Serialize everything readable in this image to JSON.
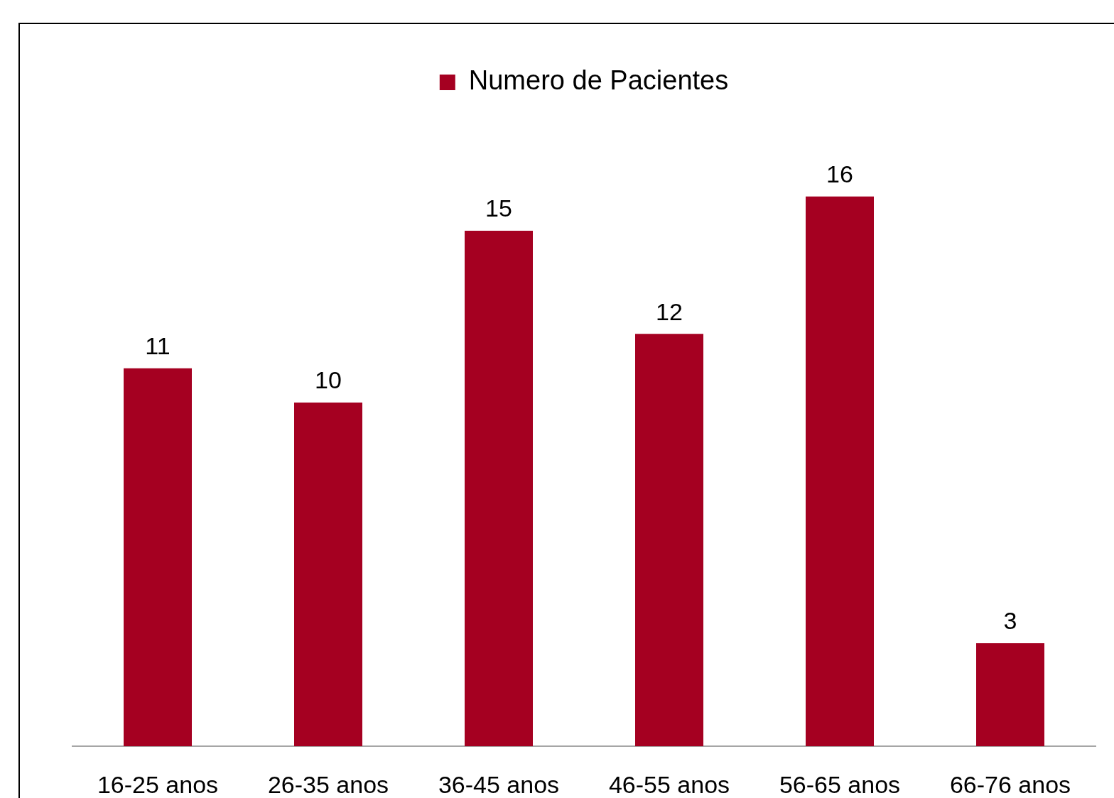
{
  "chart_data": {
    "type": "bar",
    "categories": [
      "16-25 anos",
      "26-35 anos",
      "36-45 anos",
      "46-55 anos",
      "56-65 anos",
      "66-76 anos"
    ],
    "series": [
      {
        "name": "Numero de Pacientes",
        "color": "#a50021",
        "values": [
          11,
          10,
          15,
          12,
          16,
          3
        ]
      }
    ],
    "data_labels": true,
    "legend": "top",
    "grid": false
  }
}
